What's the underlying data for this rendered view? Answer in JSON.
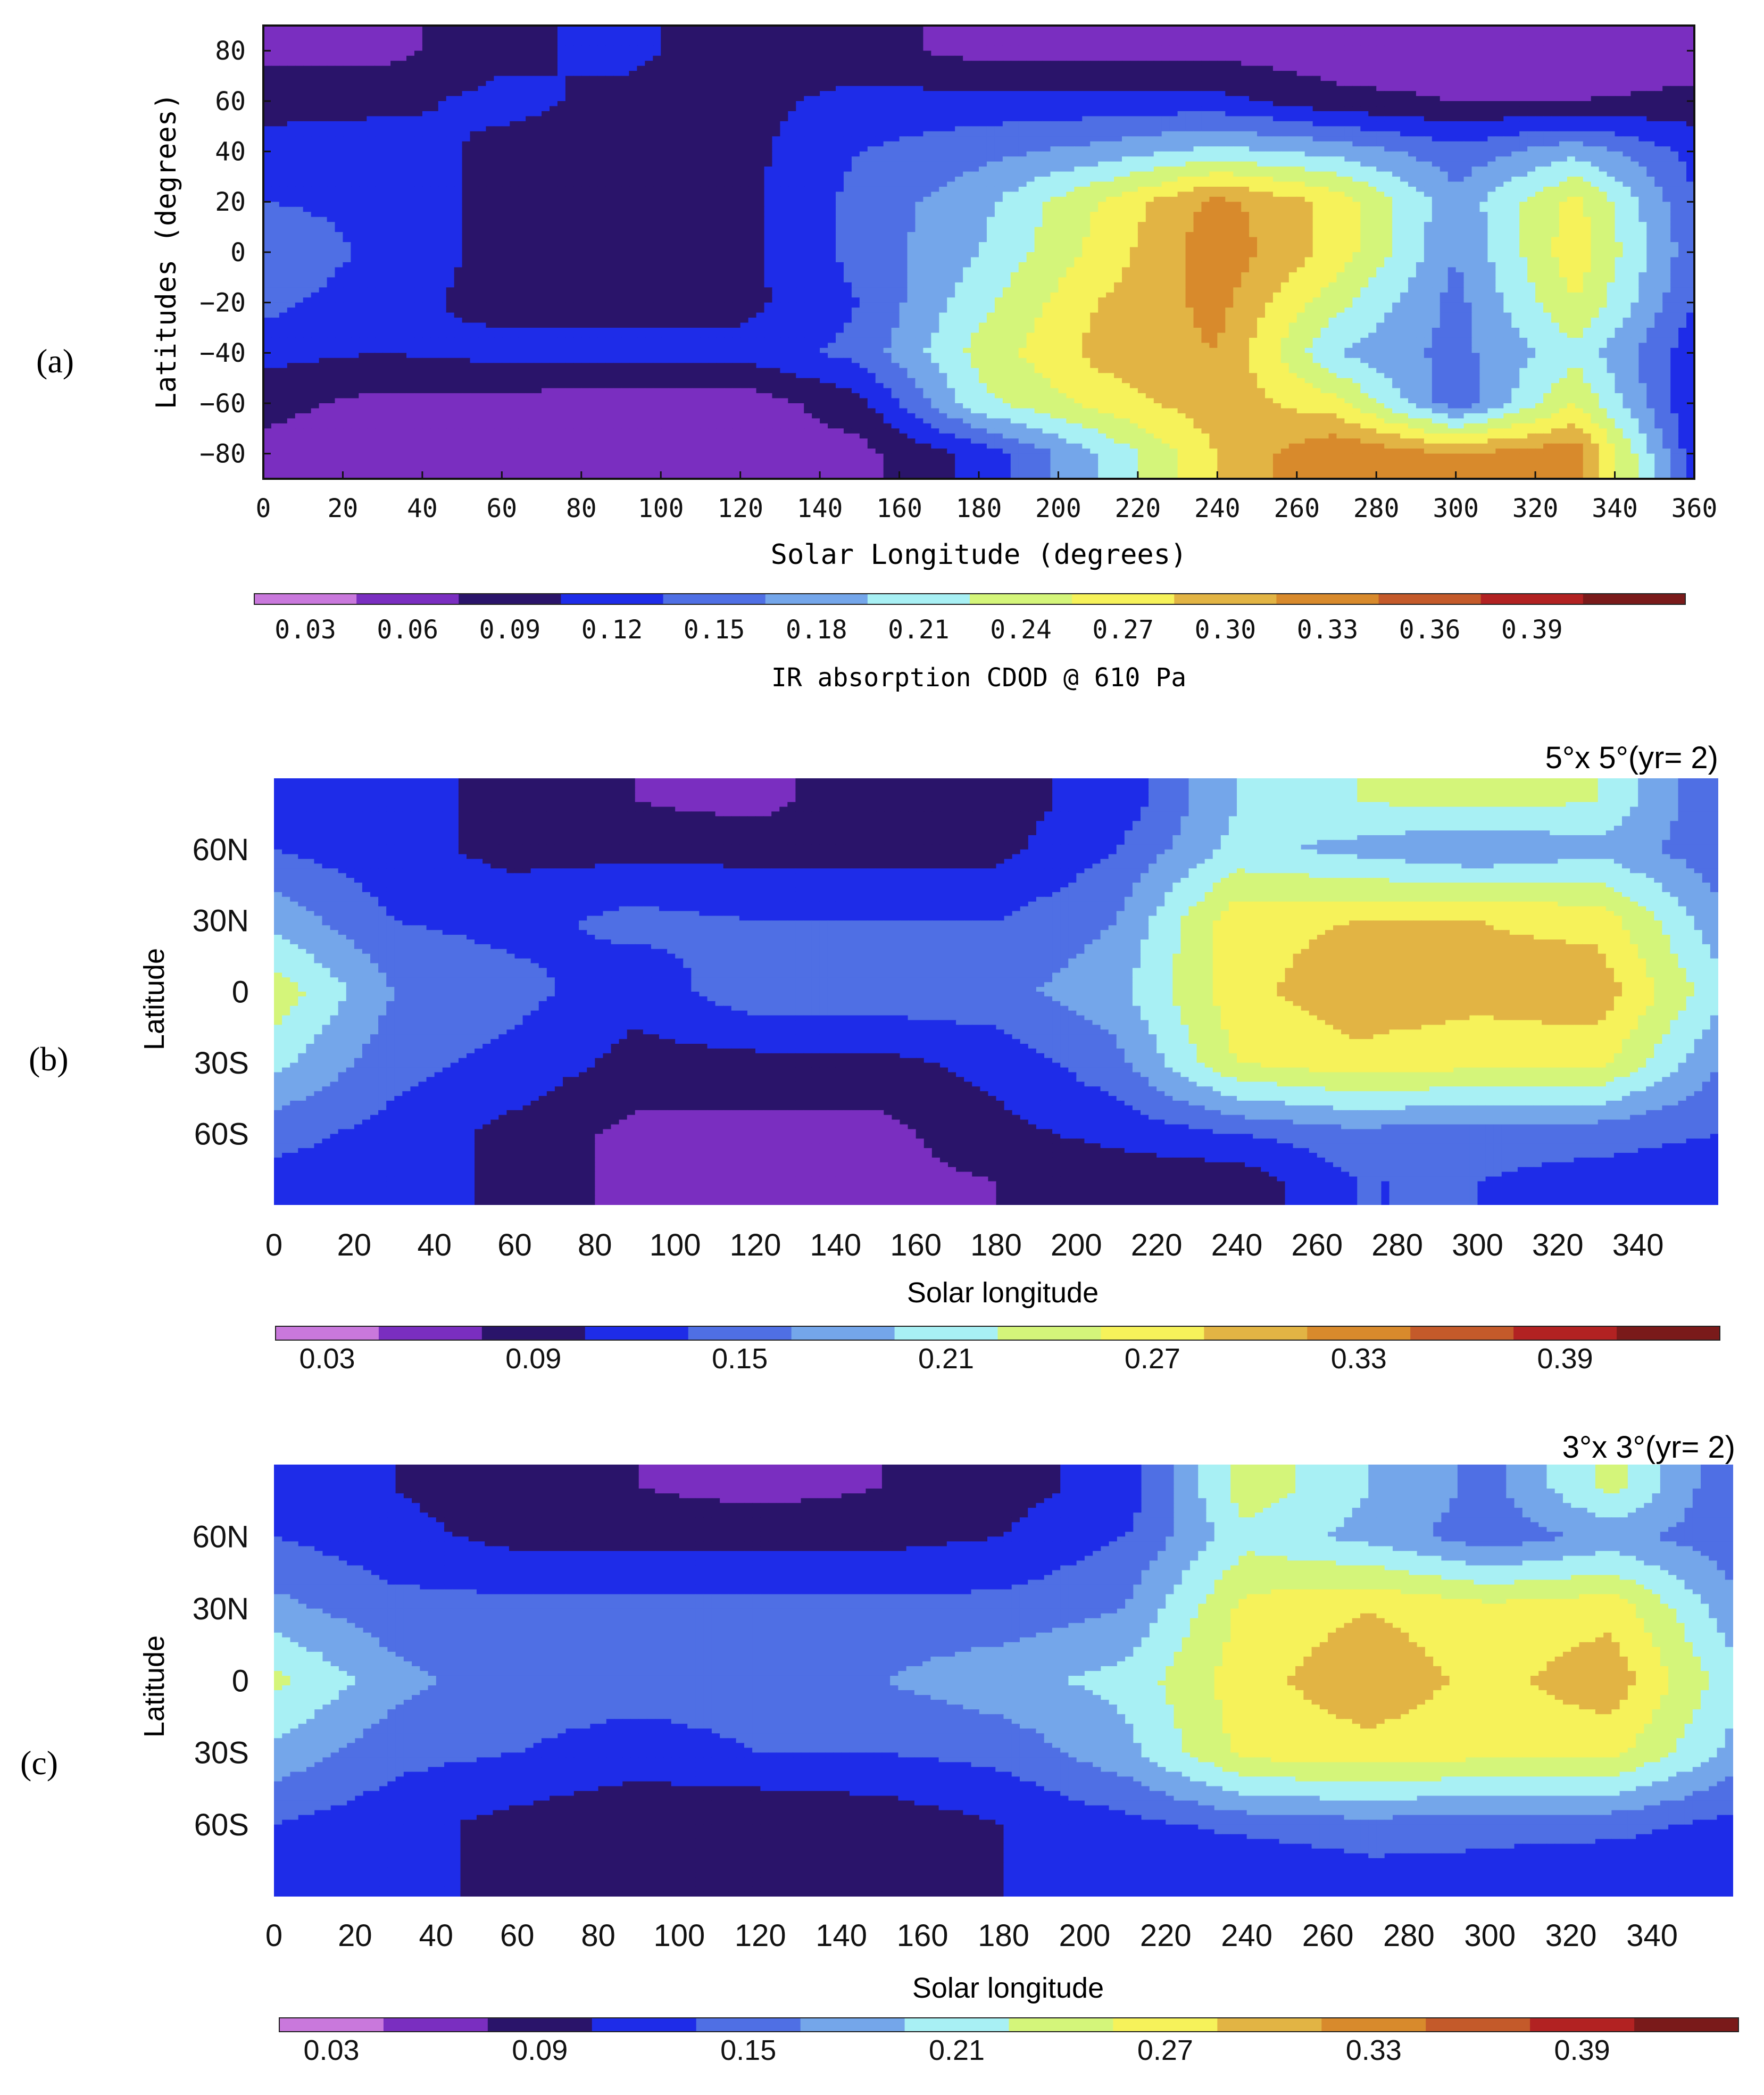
{
  "colorscale": [
    {
      "lo": 0.0,
      "hi": 0.03,
      "color": "#c978dc"
    },
    {
      "lo": 0.03,
      "hi": 0.06,
      "color": "#7a2ec0"
    },
    {
      "lo": 0.06,
      "hi": 0.09,
      "color": "#2a146a"
    },
    {
      "lo": 0.09,
      "hi": 0.12,
      "color": "#1e2ce8"
    },
    {
      "lo": 0.12,
      "hi": 0.15,
      "color": "#4f6fe4"
    },
    {
      "lo": 0.15,
      "hi": 0.18,
      "color": "#74a6ea"
    },
    {
      "lo": 0.18,
      "hi": 0.21,
      "color": "#a8f0f4"
    },
    {
      "lo": 0.21,
      "hi": 0.24,
      "color": "#d4f57a"
    },
    {
      "lo": 0.24,
      "hi": 0.27,
      "color": "#f6f25a"
    },
    {
      "lo": 0.27,
      "hi": 0.3,
      "color": "#e2b444"
    },
    {
      "lo": 0.3,
      "hi": 0.33,
      "color": "#d88a2c"
    },
    {
      "lo": 0.33,
      "hi": 0.36,
      "color": "#c45a2a"
    },
    {
      "lo": 0.36,
      "hi": 0.39,
      "color": "#b22222"
    },
    {
      "lo": 0.39,
      "hi": 0.42,
      "color": "#7a1a1a"
    }
  ],
  "panels": [
    {
      "id": "a",
      "label": "(a)",
      "ylabel": "Latitudes (degrees)",
      "xlabel": "Solar Longitude (degrees)",
      "xticks": [
        "0",
        "20",
        "40",
        "60",
        "80",
        "100",
        "120",
        "140",
        "160",
        "180",
        "200",
        "220",
        "240",
        "260",
        "280",
        "300",
        "320",
        "340",
        "360"
      ],
      "yticks": [
        "80",
        "60",
        "40",
        "20",
        "0",
        "−20",
        "−40",
        "−60",
        "−80"
      ],
      "colorbar_ticks": [
        "0.03",
        "0.06",
        "0.09",
        "0.12",
        "0.15",
        "0.18",
        "0.21",
        "0.24",
        "0.27",
        "0.30",
        "0.33",
        "0.36",
        "0.39"
      ],
      "colorbar_label": "IR absorption CDOD @ 610 Pa",
      "title": ""
    },
    {
      "id": "b",
      "label": "(b)",
      "ylabel": "Latitude",
      "xlabel": "Solar longitude",
      "xticks": [
        "0",
        "20",
        "40",
        "60",
        "80",
        "100",
        "120",
        "140",
        "160",
        "180",
        "200",
        "220",
        "240",
        "260",
        "280",
        "300",
        "320",
        "340"
      ],
      "yticks": [
        "60N",
        "30N",
        "0",
        "30S",
        "60S"
      ],
      "colorbar_ticks": [
        "0.03",
        "0.09",
        "0.15",
        "0.21",
        "0.27",
        "0.33",
        "0.39"
      ],
      "colorbar_label": "",
      "title": "5°x 5°(yr= 2)"
    },
    {
      "id": "c",
      "label": "(c)",
      "ylabel": "Latitude",
      "xlabel": "Solar longitude",
      "xticks": [
        "0",
        "20",
        "40",
        "60",
        "80",
        "100",
        "120",
        "140",
        "160",
        "180",
        "200",
        "220",
        "240",
        "260",
        "280",
        "300",
        "320",
        "340"
      ],
      "yticks": [
        "60N",
        "30N",
        "0",
        "30S",
        "60S"
      ],
      "colorbar_ticks": [
        "0.03",
        "0.09",
        "0.15",
        "0.21",
        "0.27",
        "0.33",
        "0.39"
      ],
      "colorbar_label": "",
      "title": "3°x 3°(yr= 2)"
    }
  ],
  "chart_data": [
    {
      "type": "heatmap",
      "panel": "a",
      "xlabel": "Solar Longitude (degrees)",
      "ylabel": "Latitudes (degrees)",
      "xlim": [
        0,
        360
      ],
      "ylim": [
        -90,
        90
      ],
      "value_label": "IR absorption CDOD @ 610 Pa",
      "x": [
        0,
        30,
        60,
        90,
        120,
        150,
        180,
        210,
        240,
        270,
        300,
        330,
        360
      ],
      "y": [
        80,
        60,
        40,
        20,
        0,
        -20,
        -40,
        -60,
        -80
      ],
      "z": [
        [
          0.05,
          0.05,
          0.08,
          0.1,
          0.07,
          0.07,
          0.05,
          0.05,
          0.05,
          0.04,
          0.04,
          0.03,
          0.04
        ],
        [
          0.08,
          0.08,
          0.1,
          0.08,
          0.08,
          0.1,
          0.1,
          0.1,
          0.1,
          0.07,
          0.06,
          0.06,
          0.07
        ],
        [
          0.1,
          0.11,
          0.08,
          0.08,
          0.08,
          0.12,
          0.14,
          0.16,
          0.19,
          0.17,
          0.13,
          0.17,
          0.11
        ],
        [
          0.12,
          0.11,
          0.08,
          0.08,
          0.08,
          0.13,
          0.17,
          0.24,
          0.31,
          0.26,
          0.16,
          0.25,
          0.12
        ],
        [
          0.15,
          0.11,
          0.08,
          0.08,
          0.08,
          0.13,
          0.18,
          0.25,
          0.32,
          0.26,
          0.15,
          0.26,
          0.13
        ],
        [
          0.13,
          0.1,
          0.08,
          0.08,
          0.08,
          0.12,
          0.2,
          0.27,
          0.31,
          0.22,
          0.14,
          0.24,
          0.12
        ],
        [
          0.1,
          0.09,
          0.1,
          0.1,
          0.1,
          0.13,
          0.22,
          0.28,
          0.3,
          0.18,
          0.14,
          0.2,
          0.1
        ],
        [
          0.07,
          0.05,
          0.05,
          0.04,
          0.04,
          0.08,
          0.2,
          0.25,
          0.29,
          0.25,
          0.13,
          0.24,
          0.09
        ],
        [
          0.05,
          0.04,
          0.04,
          0.04,
          0.04,
          0.05,
          0.1,
          0.18,
          0.27,
          0.33,
          0.3,
          0.32,
          0.1
        ]
      ]
    },
    {
      "type": "heatmap",
      "panel": "b",
      "title": "5°x 5°(yr= 2)",
      "xlabel": "Solar longitude",
      "ylabel": "Latitude",
      "xlim": [
        0,
        360
      ],
      "ylim": [
        -90,
        90
      ],
      "x": [
        0,
        30,
        60,
        90,
        120,
        150,
        180,
        210,
        240,
        270,
        300,
        330,
        360
      ],
      "y": [
        80,
        60,
        30,
        0,
        -30,
        -60,
        -80
      ],
      "z": [
        [
          0.1,
          0.1,
          0.08,
          0.06,
          0.05,
          0.08,
          0.08,
          0.1,
          0.18,
          0.21,
          0.22,
          0.21,
          0.12
        ],
        [
          0.12,
          0.1,
          0.08,
          0.08,
          0.08,
          0.08,
          0.08,
          0.12,
          0.19,
          0.17,
          0.15,
          0.17,
          0.13
        ],
        [
          0.17,
          0.12,
          0.11,
          0.13,
          0.12,
          0.12,
          0.12,
          0.15,
          0.26,
          0.27,
          0.27,
          0.26,
          0.16
        ],
        [
          0.23,
          0.15,
          0.13,
          0.1,
          0.14,
          0.14,
          0.14,
          0.17,
          0.26,
          0.29,
          0.28,
          0.29,
          0.19
        ],
        [
          0.19,
          0.13,
          0.11,
          0.08,
          0.08,
          0.08,
          0.1,
          0.14,
          0.24,
          0.26,
          0.25,
          0.25,
          0.15
        ],
        [
          0.13,
          0.11,
          0.08,
          0.05,
          0.05,
          0.05,
          0.08,
          0.1,
          0.12,
          0.14,
          0.13,
          0.13,
          0.12
        ],
        [
          0.11,
          0.11,
          0.08,
          0.05,
          0.05,
          0.05,
          0.06,
          0.07,
          0.07,
          0.12,
          0.12,
          0.11,
          0.1
        ]
      ]
    },
    {
      "type": "heatmap",
      "panel": "c",
      "title": "3°x 3°(yr= 2)",
      "xlabel": "Solar longitude",
      "ylabel": "Latitude",
      "xlim": [
        0,
        360
      ],
      "ylim": [
        -90,
        90
      ],
      "x": [
        0,
        30,
        60,
        90,
        120,
        150,
        180,
        210,
        240,
        270,
        300,
        330,
        360
      ],
      "y": [
        80,
        60,
        30,
        0,
        -30,
        -60,
        -80
      ],
      "z": [
        [
          0.1,
          0.09,
          0.07,
          0.06,
          0.05,
          0.06,
          0.08,
          0.1,
          0.23,
          0.18,
          0.14,
          0.22,
          0.12
        ],
        [
          0.12,
          0.1,
          0.08,
          0.08,
          0.08,
          0.08,
          0.09,
          0.12,
          0.2,
          0.17,
          0.13,
          0.16,
          0.13
        ],
        [
          0.16,
          0.13,
          0.13,
          0.13,
          0.13,
          0.13,
          0.13,
          0.15,
          0.25,
          0.27,
          0.25,
          0.26,
          0.16
        ],
        [
          0.22,
          0.16,
          0.13,
          0.13,
          0.13,
          0.15,
          0.17,
          0.19,
          0.26,
          0.29,
          0.26,
          0.29,
          0.19
        ],
        [
          0.17,
          0.13,
          0.12,
          0.11,
          0.12,
          0.12,
          0.13,
          0.17,
          0.25,
          0.26,
          0.25,
          0.25,
          0.17
        ],
        [
          0.12,
          0.1,
          0.08,
          0.06,
          0.06,
          0.07,
          0.09,
          0.11,
          0.13,
          0.14,
          0.13,
          0.13,
          0.11
        ],
        [
          0.1,
          0.1,
          0.08,
          0.07,
          0.07,
          0.08,
          0.09,
          0.1,
          0.09,
          0.11,
          0.11,
          0.1,
          0.1
        ]
      ]
    }
  ]
}
